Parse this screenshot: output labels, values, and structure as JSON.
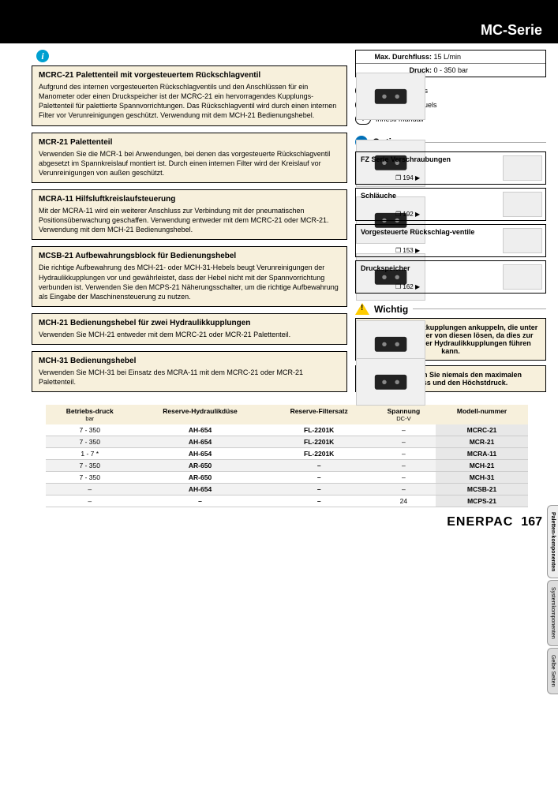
{
  "series_title": "MC-Serie",
  "specs": {
    "flow_label": "Max. Durchfluss:",
    "flow_value": "15 L/min",
    "pressure_label": "Druck:",
    "pressure_value": "0 - 350 bar"
  },
  "langs": [
    {
      "code": "GB",
      "text": "Manual couplers"
    },
    {
      "code": "F",
      "text": "Coupleurs manuels"
    },
    {
      "code": "I",
      "text": "Innesti manuali"
    }
  ],
  "products": [
    {
      "id": "mcrc-21",
      "title": "MCRC-21 Palettenteil mit vorgesteuertem Rückschlagventil",
      "desc": "Aufgrund des internen vorgesteuerten Rückschlagventils und den Anschlüssen für ein Manometer oder einen Druckspeicher ist der MCRC-21 ein hervorragendes Kupplungs-Palettenteil für palettierte Spannvorrichtungen. Das Rückschlagventil wird durch einen internen Filter vor Verunreinigungen geschützt. Verwendung mit dem MCH-21 Bedienungshebel."
    },
    {
      "id": "mcr-21",
      "title": "MCR-21 Palettenteil",
      "desc": "Verwenden Sie die MCR-1 bei Anwendungen, bei denen das vorgesteuerte Rückschlagventil abgesetzt im Spannkreislauf montiert ist.\nDurch einen internen Filter wird der Kreislauf vor Verunreinigungen von außen geschützt."
    },
    {
      "id": "mcra-11",
      "title": "MCRA-11 Hilfsluftkreislaufsteuerung",
      "desc": "Mit der MCRA-11 wird ein weiterer Anschluss zur Verbindung mit der pneumatischen Positionsüberwachung geschaffen. Verwendung entweder mit dem MCRC-21 oder MCR-21. Verwendung mit dem MCH-21 Bedienungshebel."
    },
    {
      "id": "mcsb-21",
      "title": "MCSB-21 Aufbewahrungsblock für Bedienungshebel",
      "desc": "Die richtige Aufbewahrung des MCH-21- oder MCH-31-Hebels beugt Verunreinigungen der Hydraulikkupplungen vor und gewährleistet, dass der Hebel nicht mit der Spannvorrichtung verbunden ist. Verwenden Sie den MCPS-21 Näherungsschalter, um die richtige Aufbewahrung als Eingabe der Maschinensteuerung zu nutzen."
    },
    {
      "id": "mch-21",
      "title": "MCH-21 Bedienungshebel für zwei Hydraulikkupplungen",
      "desc": "Verwenden Sie MCH-21 entweder mit dem MCRC-21 oder MCR-21 Palettenteil."
    },
    {
      "id": "mch-31",
      "title": "MCH-31 Bedienungshebel",
      "desc": "Verwenden Sie MCH-31 bei Einsatz des MCRA-11 mit dem MCRC-21 oder MCR-21 Palettenteil."
    }
  ],
  "options_title": "Optionen",
  "options": [
    {
      "title": "FZ Serie Verschraubungen",
      "page": "194"
    },
    {
      "title": "Schläuche",
      "page": "192"
    },
    {
      "title": "Vorgesteuerte Rückschlag-ventile",
      "page": "153"
    },
    {
      "title": "Druckspeicher",
      "page": "162"
    }
  ],
  "important_title": "Wichtig",
  "warnings": [
    "Nicht an Hydraulikkupplungen ankuppeln, die unter Druck stehen, oder von diesen lösen, da dies zur Beschädigung der Hydraulikkupplungen führen kann.",
    "Überschreiten Sie niemals den maximalen Durchfluss und den Höchstdruck."
  ],
  "table": {
    "headers": [
      {
        "h": "Betriebs-druck",
        "sub": "bar"
      },
      {
        "h": "Reserve-Hydraulikdüse",
        "sub": ""
      },
      {
        "h": "Reserve-Filtersatz",
        "sub": ""
      },
      {
        "h": "Spannung",
        "sub": "DC-V"
      },
      {
        "h": "Modell-nummer",
        "sub": ""
      }
    ],
    "rows": [
      [
        "7 - 350",
        "AH-654",
        "FL-2201K",
        "–",
        "MCRC-21"
      ],
      [
        "7 - 350",
        "AH-654",
        "FL-2201K",
        "–",
        "MCR-21"
      ],
      [
        "1 - 7 *",
        "AH-654",
        "FL-2201K",
        "–",
        "MCRA-11"
      ],
      [
        "7 - 350",
        "AR-650",
        "–",
        "–",
        "MCH-21"
      ],
      [
        "7 - 350",
        "AR-650",
        "–",
        "–",
        "MCH-31"
      ],
      [
        "–",
        "AH-654",
        "–",
        "–",
        "MCSB-21"
      ],
      [
        "–",
        "–",
        "–",
        "24",
        "MCPS-21"
      ]
    ]
  },
  "side_tabs": [
    "Paletten-komponenten",
    "Systemkomponenten",
    "Gelbe Seiten"
  ],
  "brand": "ENERPAC",
  "page_number": "167"
}
